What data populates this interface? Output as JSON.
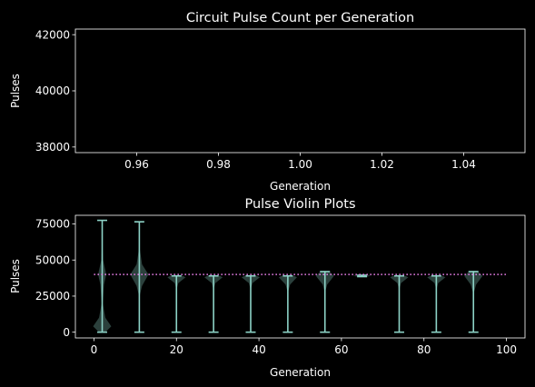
{
  "chart_data": [
    {
      "type": "line",
      "title": "Circuit Pulse Count per Generation",
      "xlabel": "Generation",
      "ylabel": "Pulses",
      "xlim": [
        0.945,
        1.055
      ],
      "ylim": [
        37800,
        42200
      ],
      "xticks": [
        0.96,
        0.98,
        1.0,
        1.02,
        1.04
      ],
      "xtick_labels": [
        "0.96",
        "0.98",
        "1.00",
        "1.02",
        "1.04"
      ],
      "yticks": [
        38000,
        40000,
        42000
      ],
      "ytick_labels": [
        "38000",
        "40000",
        "42000"
      ],
      "series": [],
      "grid": false
    },
    {
      "type": "violin",
      "title": "Pulse Violin Plots",
      "xlabel": "Generation",
      "ylabel": "Pulses",
      "xlim": [
        -4.5,
        104.5
      ],
      "ylim": [
        -4000,
        81000
      ],
      "xticks": [
        0,
        20,
        40,
        60,
        80,
        100
      ],
      "xtick_labels": [
        "0",
        "20",
        "40",
        "60",
        "80",
        "100"
      ],
      "yticks": [
        0,
        25000,
        50000,
        75000
      ],
      "ytick_labels": [
        "0",
        "25000",
        "50000",
        "75000"
      ],
      "reference_line": {
        "y": 40000,
        "x_range": [
          0,
          100
        ],
        "style": "dotted",
        "color": "#ee82ee"
      },
      "violin_color": "#8dd3c7",
      "violins": [
        {
          "x": 2,
          "min": 0,
          "max": 77500,
          "halfwidth": 2.2,
          "profile": [
            [
              0,
              0.35
            ],
            [
              4000,
              1.0
            ],
            [
              10000,
              0.35
            ],
            [
              20000,
              0.06
            ],
            [
              33000,
              0.2
            ],
            [
              40000,
              0.45
            ],
            [
              50000,
              0.1
            ],
            [
              62000,
              0.03
            ],
            [
              77500,
              0.0
            ]
          ]
        },
        {
          "x": 11,
          "min": 0,
          "max": 76500,
          "halfwidth": 2.2,
          "profile": [
            [
              0,
              0.0
            ],
            [
              25000,
              0.03
            ],
            [
              32000,
              0.3
            ],
            [
              40000,
              1.0
            ],
            [
              47000,
              0.3
            ],
            [
              58000,
              0.04
            ],
            [
              76500,
              0.0
            ]
          ]
        },
        {
          "x": 20,
          "min": 0,
          "max": 39000,
          "halfwidth": 2.2,
          "profile": [
            [
              0,
              0.0
            ],
            [
              30000,
              0.03
            ],
            [
              34000,
              0.2
            ],
            [
              38000,
              1.0
            ],
            [
              39000,
              0.7
            ]
          ]
        },
        {
          "x": 29,
          "min": 0,
          "max": 39000,
          "halfwidth": 2.2,
          "profile": [
            [
              0,
              0.0
            ],
            [
              30000,
              0.03
            ],
            [
              34000,
              0.2
            ],
            [
              38000,
              1.0
            ],
            [
              39000,
              0.7
            ]
          ]
        },
        {
          "x": 38,
          "min": 0,
          "max": 39000,
          "halfwidth": 2.2,
          "profile": [
            [
              0,
              0.0
            ],
            [
              30000,
              0.03
            ],
            [
              34000,
              0.2
            ],
            [
              38000,
              1.0
            ],
            [
              39000,
              0.7
            ]
          ]
        },
        {
          "x": 47,
          "min": 0,
          "max": 39000,
          "halfwidth": 2.2,
          "profile": [
            [
              0,
              0.0
            ],
            [
              28000,
              0.03
            ],
            [
              33000,
              0.25
            ],
            [
              38000,
              1.0
            ],
            [
              39000,
              0.7
            ]
          ]
        },
        {
          "x": 56,
          "min": 0,
          "max": 42000,
          "halfwidth": 2.2,
          "profile": [
            [
              0,
              0.0
            ],
            [
              28000,
              0.03
            ],
            [
              33000,
              0.25
            ],
            [
              39000,
              1.0
            ],
            [
              42000,
              0.5
            ]
          ]
        },
        {
          "x": 65,
          "min": 38500,
          "max": 39500,
          "halfwidth": 2.2,
          "profile": [
            [
              38500,
              0.5
            ],
            [
              39000,
              1.0
            ],
            [
              39500,
              0.5
            ]
          ]
        },
        {
          "x": 74,
          "min": 0,
          "max": 39000,
          "halfwidth": 2.2,
          "profile": [
            [
              0,
              0.0
            ],
            [
              30000,
              0.03
            ],
            [
              34000,
              0.2
            ],
            [
              38000,
              1.0
            ],
            [
              39000,
              0.7
            ]
          ]
        },
        {
          "x": 83,
          "min": 0,
          "max": 39000,
          "halfwidth": 2.2,
          "profile": [
            [
              0,
              0.0
            ],
            [
              30000,
              0.03
            ],
            [
              34000,
              0.2
            ],
            [
              38000,
              1.0
            ],
            [
              39000,
              0.7
            ]
          ]
        },
        {
          "x": 92,
          "min": 0,
          "max": 42000,
          "halfwidth": 2.2,
          "profile": [
            [
              0,
              0.0
            ],
            [
              27000,
              0.03
            ],
            [
              33000,
              0.3
            ],
            [
              39000,
              1.0
            ],
            [
              42000,
              0.5
            ]
          ]
        }
      ],
      "grid": false
    }
  ]
}
